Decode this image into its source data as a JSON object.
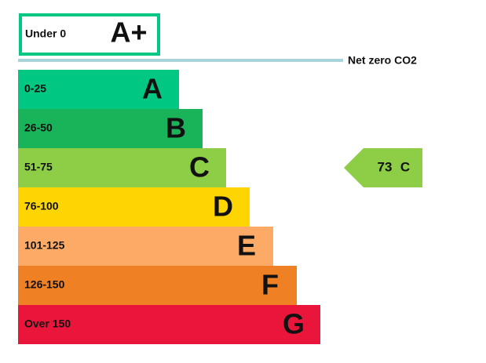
{
  "top_band": {
    "range": "Under 0",
    "letter": "A+",
    "color": "#00c781"
  },
  "net_zero": {
    "label": "Net zero CO2",
    "color": "#a9d4dc"
  },
  "bands": [
    {
      "range": "0-25",
      "letter": "A",
      "color": "#00c781"
    },
    {
      "range": "26-50",
      "letter": "B",
      "color": "#19b459"
    },
    {
      "range": "51-75",
      "letter": "C",
      "color": "#8dce46"
    },
    {
      "range": "76-100",
      "letter": "D",
      "color": "#ffd500"
    },
    {
      "range": "101-125",
      "letter": "E",
      "color": "#fcaa65"
    },
    {
      "range": "126-150",
      "letter": "F",
      "color": "#ef8023"
    },
    {
      "range": "Over 150",
      "letter": "G",
      "color": "#e9153b"
    }
  ],
  "current": {
    "value": 73,
    "letter": "C",
    "color": "#8dce46"
  }
}
